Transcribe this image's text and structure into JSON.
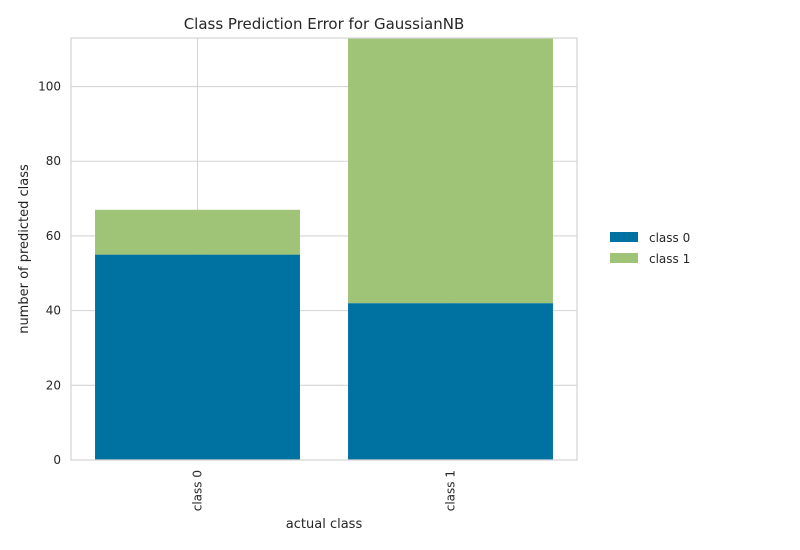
{
  "chart_data": {
    "type": "bar",
    "stacked": true,
    "title": "Class Prediction Error for GaussianNB",
    "xlabel": "actual class",
    "ylabel": "number of predicted class",
    "categories": [
      "class 0",
      "class 1"
    ],
    "series": [
      {
        "name": "class 0",
        "values": [
          55,
          42
        ],
        "color": "#0072a2"
      },
      {
        "name": "class 1",
        "values": [
          12,
          71
        ],
        "color": "#9fc377"
      }
    ],
    "ylim": [
      0,
      113
    ],
    "yticks": [
      0,
      20,
      40,
      60,
      80,
      100
    ],
    "grid": true,
    "legend_position": "right"
  }
}
